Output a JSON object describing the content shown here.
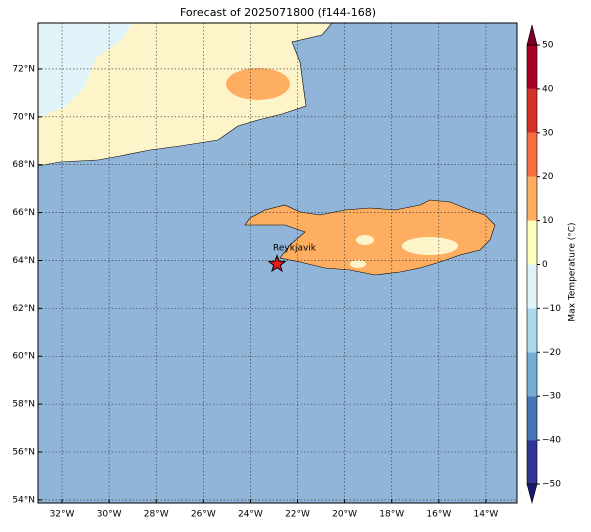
{
  "chart_data": {
    "type": "map",
    "title": "Forecast of 2025071800 (f144-168)",
    "xlim": [
      -33.02,
      -12.68
    ],
    "ylim": [
      53.87,
      73.92
    ],
    "xticks": [
      {
        "value": -32,
        "label": "32°W"
      },
      {
        "value": -30,
        "label": "30°W"
      },
      {
        "value": -28,
        "label": "28°W"
      },
      {
        "value": -26,
        "label": "26°W"
      },
      {
        "value": -24,
        "label": "24°W"
      },
      {
        "value": -22,
        "label": "22°W"
      },
      {
        "value": -20,
        "label": "20°W"
      },
      {
        "value": -18,
        "label": "18°W"
      },
      {
        "value": -16,
        "label": "16°W"
      },
      {
        "value": -14,
        "label": "14°W"
      }
    ],
    "yticks": [
      {
        "value": 54,
        "label": "54°N"
      },
      {
        "value": 56,
        "label": "56°N"
      },
      {
        "value": 58,
        "label": "58°N"
      },
      {
        "value": 60,
        "label": "60°N"
      },
      {
        "value": 62,
        "label": "62°N"
      },
      {
        "value": 64,
        "label": "64°N"
      },
      {
        "value": 66,
        "label": "66°N"
      },
      {
        "value": 68,
        "label": "68°N"
      },
      {
        "value": 70,
        "label": "70°N"
      },
      {
        "value": 72,
        "label": "72°N"
      }
    ],
    "grid": true,
    "city": {
      "name": "Reykjavik",
      "lon": -22.87,
      "lat": 63.85
    },
    "colorbar": {
      "label": "Max Temperature (°C)",
      "lim": [
        -50,
        50
      ],
      "levels": [
        -50,
        -40,
        -30,
        -20,
        -10,
        0,
        10,
        20,
        30,
        40,
        50
      ],
      "colors": [
        "#313695",
        "#4575b4",
        "#74add1",
        "#abd9e9",
        "#e0f3f8",
        "#ffffbf",
        "#fdae61",
        "#f46d43",
        "#d73027",
        "#a50026"
      ],
      "under": "#1a1a6e",
      "over": "#7f0026",
      "ticks": [
        {
          "value": -50,
          "label": "−50"
        },
        {
          "value": -40,
          "label": "−40"
        },
        {
          "value": -30,
          "label": "−30"
        },
        {
          "value": -20,
          "label": "−20"
        },
        {
          "value": -10,
          "label": "−10"
        },
        0,
        10,
        20,
        30,
        40,
        50
      ]
    }
  }
}
